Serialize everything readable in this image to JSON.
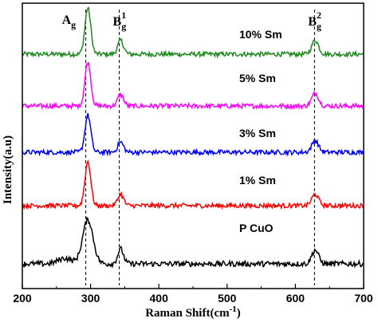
{
  "chart_data": {
    "type": "line",
    "xlabel": "Raman Shift(cm",
    "xlabel_sup": "-1",
    "xlabel_tail": ")",
    "ylabel": "Intensity(a.u)",
    "xlim": [
      200,
      700
    ],
    "x_ticks": [
      200,
      300,
      400,
      500,
      600,
      700
    ],
    "x_tick_labels": [
      "200",
      "300",
      "400",
      "500",
      "600",
      "700"
    ],
    "peak_lines": [
      {
        "x": 293,
        "label_main": "A",
        "label_sub": "g",
        "label_sup": ""
      },
      {
        "x": 342,
        "label_main": "B",
        "label_sub": "g",
        "label_sup": "1"
      },
      {
        "x": 628,
        "label_main": "B",
        "label_sub": "g",
        "label_sup": "2"
      }
    ],
    "peaks": [
      {
        "center": 296,
        "width": 6
      },
      {
        "center": 344,
        "width": 6
      },
      {
        "center": 629,
        "width": 7
      }
    ],
    "series": [
      {
        "name": "10% Sm",
        "color": "#1e8a1e",
        "offset": 4,
        "amplitudes": [
          1.0,
          0.3,
          0.3
        ],
        "noise": 0.05
      },
      {
        "name": "5% Sm",
        "color": "#ff00ff",
        "offset": 3,
        "amplitudes": [
          0.95,
          0.25,
          0.28
        ],
        "noise": 0.05
      },
      {
        "name": "3% Sm",
        "color": "#0000ff",
        "offset": 2,
        "amplitudes": [
          0.8,
          0.22,
          0.25
        ],
        "noise": 0.05
      },
      {
        "name": "1% Sm",
        "color": "#ff0000",
        "offset": 1,
        "amplitudes": [
          0.95,
          0.25,
          0.25
        ],
        "noise": 0.05
      },
      {
        "name": "P CuO",
        "color": "#000000",
        "offset": 0,
        "amplitudes": [
          0.95,
          0.32,
          0.3
        ],
        "noise": 0.06,
        "broad": true
      }
    ]
  }
}
